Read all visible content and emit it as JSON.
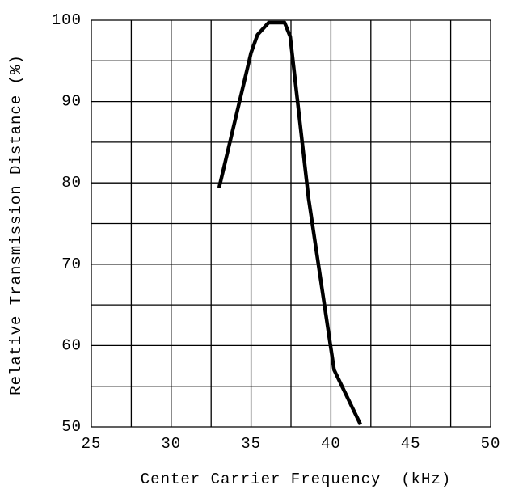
{
  "chart_data": {
    "type": "line",
    "xlabel": "Center Carrier Frequency  (kHz)",
    "ylabel": "Relative Transmission Distance (%)",
    "x": [
      33.0,
      35.0,
      35.4,
      36.1,
      37.1,
      37.45,
      38.6,
      40.2,
      41.85
    ],
    "series": [
      {
        "name": "Relative Transmission Distance",
        "color": "#000000",
        "values": [
          79.4,
          96.0,
          98.2,
          99.7,
          99.7,
          98.0,
          78.1,
          57.0,
          50.3
        ]
      }
    ],
    "xlim": [
      25,
      50
    ],
    "xticks": [
      25,
      30,
      35,
      40,
      45,
      50
    ],
    "xminor": [
      27.5,
      32.5,
      37.5,
      42.5,
      47.5
    ],
    "ylim": [
      50,
      100
    ],
    "yticks": [
      50,
      60,
      70,
      80,
      90,
      100
    ],
    "yminor": [
      55,
      65,
      75,
      85,
      95
    ],
    "grid": true
  }
}
